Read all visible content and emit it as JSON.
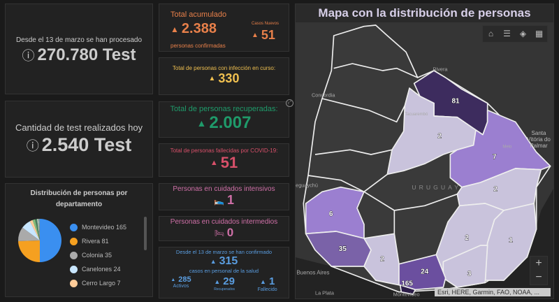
{
  "tests_total": {
    "label": "Desde el 13 de marzo se han procesado",
    "value": "270.780 Test",
    "icon": "info-icon"
  },
  "tests_today": {
    "label": "Cantidad de test realizados hoy",
    "value": "2.540 Test",
    "icon": "info-icon"
  },
  "confirmed": {
    "title": "Total acumulado",
    "value": "2.388",
    "subtitle": "personas confirmadas",
    "new_label": "Casos Nuevos",
    "new_value": "51",
    "color": "#e8804a"
  },
  "active": {
    "title": "Total de personas con infección en curso:",
    "value": "330",
    "color": "#f0c050"
  },
  "recovered": {
    "title": "Total de personas recuperadas:",
    "value": "2.007",
    "color": "#1f9a6a"
  },
  "deceased": {
    "title": "Total de personas fallecidas por COVID-19:",
    "value": "51",
    "color": "#d9506a"
  },
  "icu": {
    "title": "Personas en cuidados intensivos",
    "value": "1",
    "color": "#d070a8"
  },
  "intermediate": {
    "title": "Personas en cuidados intermedios",
    "value": "0",
    "color": "#d070a8"
  },
  "health": {
    "title": "Desde el 13 de marzo se han confirmado",
    "value": "315",
    "subtitle": "casos en personal de la salud",
    "activos_value": "285",
    "activos_label": "Activos",
    "recuperados_value": "29",
    "recuperados_label": "Recuperados",
    "fallecido_value": "1",
    "fallecido_label": "Fallecido",
    "color": "#5a9de0"
  },
  "chart_data": {
    "type": "pie",
    "title": "Distribución de personas por departamento",
    "categories": [
      "Montevideo",
      "Rivera",
      "Colonia",
      "Canelones",
      "Cerro Largo"
    ],
    "values": [
      165,
      81,
      35,
      24,
      7
    ],
    "colors": [
      "#3a8ff0",
      "#f5a020",
      "#aaaaaa",
      "#c8e6ff",
      "#ffcc99"
    ],
    "other_values": [
      6,
      3,
      2,
      2,
      2,
      2,
      1
    ],
    "other_colors": [
      "#7fbf7f",
      "#5a7a5a",
      "#3f8f6f",
      "#b0d0b0",
      "#d0d0d0",
      "#6a8a9a",
      "#8fbfa0"
    ]
  },
  "map": {
    "title": "Mapa con la distribución de personas",
    "country": "URUGUAY",
    "places": [
      "Rivera",
      "Concordia",
      "Tacuarembó",
      "Melo",
      "Gualeguaychú",
      "Santa Vitória do Palmar",
      "Buenos Aires",
      "La Plata",
      "Montevideo"
    ],
    "counts": {
      "rivera": "81",
      "tacuarembo": "2",
      "cerro_largo": "7",
      "treinta_y_tres": "2",
      "soriano": "6",
      "colonia": "35",
      "san_jose": "2",
      "lavalleja": "2",
      "rocha": "1",
      "canelones": "24",
      "maldonado": "3",
      "montevideo": "165"
    },
    "attribution": "Esri, HERE, Garmin, FAO, NOAA, ...",
    "zoom_in": "+",
    "zoom_out": "−"
  }
}
